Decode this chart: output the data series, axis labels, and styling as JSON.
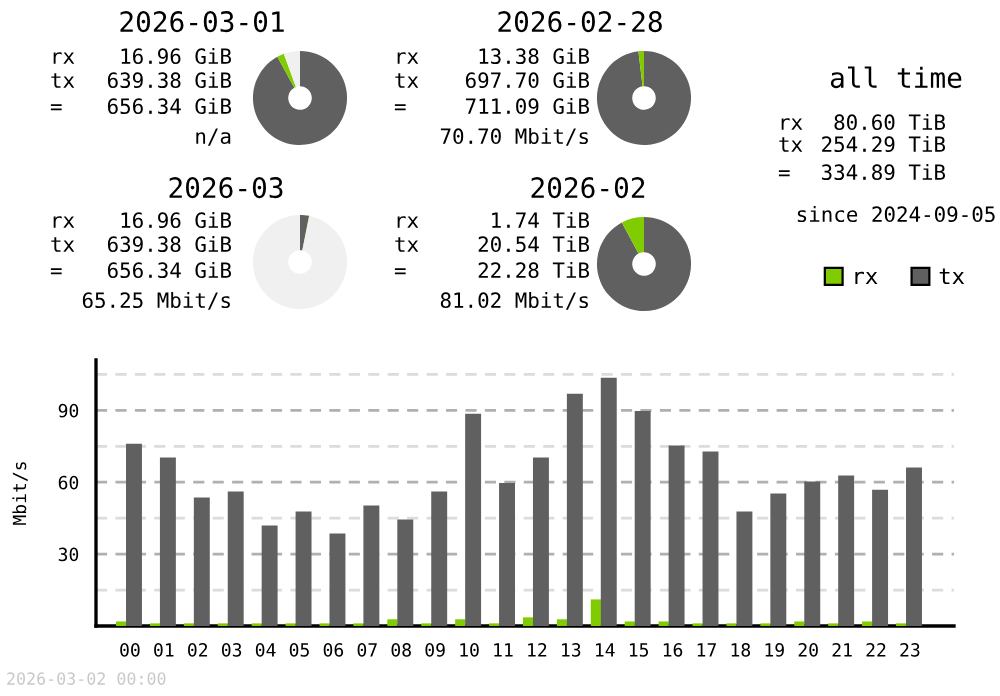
{
  "chart_data": [
    {
      "type": "donut",
      "title": "2026-03-01",
      "categories": [
        null,
        null,
        null
      ],
      "values": [
        92.0,
        2.4,
        5.6
      ],
      "colors": [
        "#606060",
        "#80cc00",
        "#f0f0f0"
      ],
      "annotations": [
        "rx",
        "16.96 GiB",
        "tx",
        "639.38 GiB",
        "=",
        "656.34 GiB",
        "n/a"
      ]
    },
    {
      "type": "donut",
      "title": "2026-02-28",
      "categories": [
        null,
        null
      ],
      "values": [
        98.1,
        1.9
      ],
      "colors": [
        "#606060",
        "#80cc00"
      ],
      "annotations": [
        "rx",
        "13.38 GiB",
        "tx",
        "697.70 GiB",
        "=",
        "711.09 GiB",
        "70.70 Mbit/s"
      ]
    },
    {
      "type": "donut",
      "title": "2026-03",
      "categories": [
        null,
        null,
        null
      ],
      "values": [
        3.1,
        0.1,
        96.8
      ],
      "colors": [
        "#606060",
        "#80cc00",
        "#f0f0f0"
      ],
      "annotations": [
        "rx",
        "16.96 GiB",
        "tx",
        "639.38 GiB",
        "=",
        "656.34 GiB",
        "65.25 Mbit/s"
      ]
    },
    {
      "type": "donut",
      "title": "2026-02",
      "categories": [
        null,
        null
      ],
      "values": [
        92.2,
        7.8
      ],
      "colors": [
        "#606060",
        "#80cc00"
      ],
      "annotations": [
        "rx",
        "1.74 TiB",
        "tx",
        "20.54 TiB",
        "=",
        "22.28 TiB",
        "81.02 Mbit/s"
      ]
    },
    {
      "type": "other",
      "title": "all time",
      "annotations": [
        "rx",
        "80.60 TiB",
        "tx",
        "254.29 TiB",
        "=",
        "334.89 TiB",
        "since 2024-09-05"
      ]
    },
    {
      "type": "bar",
      "ylabel": "Mbit/s",
      "categories": [
        "00",
        "01",
        "02",
        "03",
        "04",
        "05",
        "06",
        "07",
        "08",
        "09",
        "10",
        "11",
        "12",
        "13",
        "14",
        "15",
        "16",
        "17",
        "18",
        "19",
        "20",
        "21",
        "22",
        "23"
      ],
      "series": [
        {
          "name": "rx",
          "color": "#80cc00",
          "values": [
            1.9,
            1.1,
            1.1,
            1.1,
            1.1,
            1.1,
            1.1,
            1.1,
            2.8,
            1.1,
            2.8,
            1.1,
            3.6,
            2.8,
            11.1,
            1.9,
            1.9,
            1.1,
            1.1,
            1.1,
            1.9,
            1.1,
            1.9,
            1.1
          ]
        },
        {
          "name": "tx",
          "color": "#606060",
          "values": [
            76.1,
            70.3,
            53.6,
            56.1,
            41.9,
            47.8,
            38.6,
            50.3,
            44.4,
            56.1,
            88.6,
            59.7,
            70.3,
            96.9,
            103.6,
            89.7,
            75.3,
            72.8,
            47.8,
            55.3,
            60.3,
            62.8,
            56.9,
            66.1
          ]
        }
      ],
      "ylim": [
        0,
        111
      ],
      "yticks": [
        {
          "value": 15,
          "label": null
        },
        30,
        {
          "value": 45,
          "label": null
        },
        60,
        {
          "value": 75,
          "label": null
        },
        90,
        {
          "value": 105,
          "label": null
        }
      ],
      "grid": "y",
      "legend": "top right",
      "annotations": [
        "2026-03-02 00:00"
      ]
    }
  ]
}
